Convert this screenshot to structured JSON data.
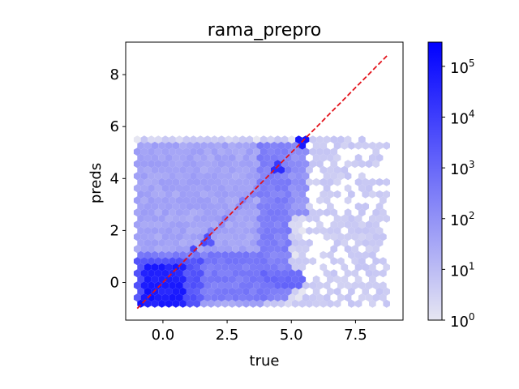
{
  "chart_data": {
    "type": "hexbin",
    "title": "rama_prepro",
    "xlabel": "true",
    "ylabel": "preds",
    "xlim": [
      -1.45,
      9.35
    ],
    "ylim": [
      -1.45,
      9.25
    ],
    "xticks": [
      0.0,
      2.5,
      5.0,
      7.5
    ],
    "xtick_labels": [
      "0.0",
      "2.5",
      "5.0",
      "7.5"
    ],
    "yticks": [
      0,
      2,
      4,
      6,
      8
    ],
    "ytick_labels": [
      "0",
      "2",
      "4",
      "6",
      "8"
    ],
    "reference_line": {
      "x": [
        -1.0,
        8.75
      ],
      "y": [
        -1.0,
        8.75
      ],
      "style": "dashed",
      "color": "#e3131b"
    },
    "colorbar": {
      "scale": "log",
      "range": [
        1,
        300000
      ],
      "ticks": [
        1,
        10,
        100,
        1000,
        10000,
        100000
      ],
      "tick_base": "10",
      "tick_exponents": [
        "0",
        "1",
        "2",
        "3",
        "4",
        "5"
      ],
      "color_low": "#e6e6f2",
      "color_high": "#0000ff"
    },
    "data_extent": {
      "x": [
        -1.0,
        8.8
      ],
      "y": [
        -1.0,
        5.5
      ]
    },
    "density_regions": [
      {
        "x": [
          -1.0,
          8.8
        ],
        "y": [
          -1.0,
          5.5
        ],
        "count": 3
      },
      {
        "x": [
          -1.0,
          3.8
        ],
        "y": [
          -1.0,
          5.4
        ],
        "count": 40
      },
      {
        "x": [
          -1.0,
          1.5
        ],
        "y": [
          -1.0,
          1.0
        ],
        "count": 3000
      },
      {
        "x": [
          -0.8,
          0.8
        ],
        "y": [
          -0.9,
          0.6
        ],
        "count": 60000
      },
      {
        "x": [
          -1.0,
          4.0
        ],
        "y": [
          -0.7,
          1.2
        ],
        "count": 400
      },
      {
        "x": [
          3.7,
          4.9
        ],
        "y": [
          -0.6,
          5.4
        ],
        "count": 300
      },
      {
        "x": [
          5.0,
          5.6
        ],
        "y": [
          2.5,
          5.4
        ],
        "count": 100
      },
      {
        "x": [
          3.8,
          5.5
        ],
        "y": [
          -0.2,
          0.5
        ],
        "count": 900
      }
    ],
    "diagonal_hotspots": [
      {
        "x": -0.8,
        "y": -0.8,
        "count": 80000
      },
      {
        "x": -0.5,
        "y": -0.5,
        "count": 150000
      },
      {
        "x": -0.3,
        "y": -0.3,
        "count": 60000
      },
      {
        "x": 0.0,
        "y": 0.0,
        "count": 20000
      },
      {
        "x": 1.2,
        "y": 1.3,
        "count": 5000
      },
      {
        "x": 1.7,
        "y": 1.6,
        "count": 4000
      },
      {
        "x": 4.4,
        "y": 4.4,
        "count": 20000
      },
      {
        "x": 5.4,
        "y": 5.4,
        "count": 80000
      }
    ]
  }
}
